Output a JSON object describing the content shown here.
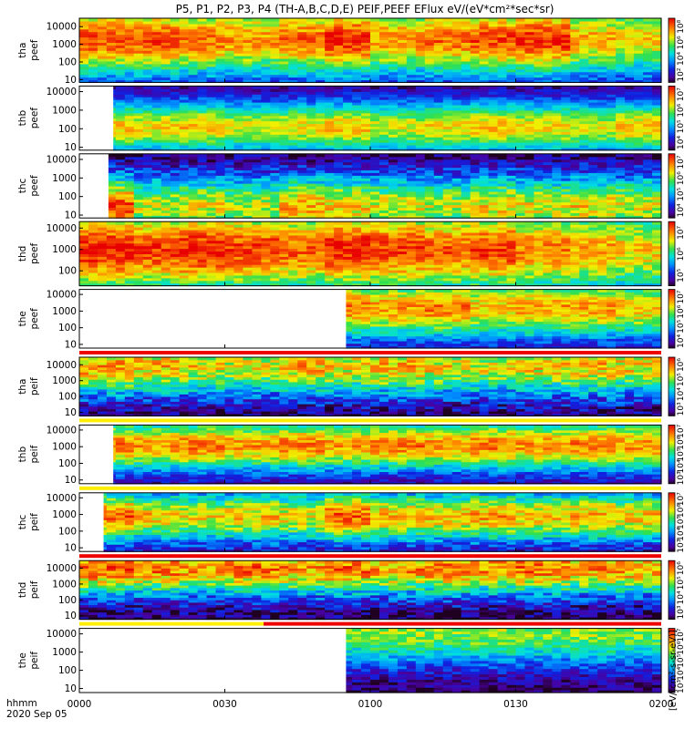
{
  "chart_data": {
    "type": "heatmap",
    "title": "P5, P1, P2, P3, P4 (TH-A,B,C,D,E) PEIF,PEEF EFlux eV/(eV*cm²*sec*sr)",
    "x": {
      "ticks": [
        "0000",
        "0030",
        "0100",
        "0130",
        "0200"
      ],
      "tick_minutes": [
        0,
        30,
        60,
        90,
        120
      ],
      "range_minutes": [
        0,
        120
      ],
      "corner_label_1": "hhmm",
      "corner_label_2": "2020 Sep 05"
    },
    "colorbar_label": "[eV/(cm²-s-sr-eV)]",
    "panels": [
      {
        "probe": "tha",
        "species": "peef",
        "ylabel": [
          "tha",
          "peef"
        ],
        "yticks": [
          "10",
          "100",
          "1000",
          "10000"
        ],
        "ytick_values": [
          10,
          100,
          1000,
          10000
        ],
        "yrange": [
          7,
          30000
        ],
        "data_start_min": 0,
        "peak_log_e": 3.3,
        "peak_level": 0.88,
        "width_dex": 1.5,
        "spread": 0.1,
        "mod": [
          0.9,
          0.9,
          0.85,
          0.8,
          0.85,
          0.95,
          0.8,
          0.85,
          0.9,
          0.95,
          0.75,
          0.7
        ],
        "cbar_ticks": [
          "10²",
          "10⁴",
          "10⁶",
          "10⁸"
        ],
        "status_bar": []
      },
      {
        "probe": "thb",
        "species": "peef",
        "ylabel": [
          "thb",
          "peef"
        ],
        "yticks": [
          "10",
          "100",
          "1000",
          "10000"
        ],
        "ytick_values": [
          10,
          100,
          1000,
          10000
        ],
        "yrange": [
          7,
          20000
        ],
        "data_start_min": 7,
        "peak_log_e": 2.1,
        "peak_level": 0.72,
        "width_dex": 1.0,
        "spread": 0.08,
        "mod": [
          0.9,
          0.85,
          0.9,
          0.8,
          0.85,
          0.9,
          0.8,
          0.85,
          0.9,
          0.85,
          0.8,
          0.9
        ],
        "cbar_ticks": [
          "10⁴",
          "10⁵",
          "10⁶",
          "10⁷"
        ],
        "status_bar": []
      },
      {
        "probe": "thc",
        "species": "peef",
        "ylabel": [
          "thc",
          "peef"
        ],
        "yticks": [
          "10",
          "100",
          "1000",
          "10000"
        ],
        "ytick_values": [
          10,
          100,
          1000,
          10000
        ],
        "yrange": [
          7,
          20000
        ],
        "data_start_min": 6,
        "peak_log_e": 1.5,
        "peak_level": 0.78,
        "width_dex": 1.2,
        "spread": 0.12,
        "mod": [
          1.0,
          0.7,
          0.75,
          0.7,
          0.85,
          0.8,
          0.75,
          0.7,
          0.8,
          0.75,
          0.8,
          0.75
        ],
        "cbar_ticks": [
          "10⁴",
          "10⁵",
          "10⁶",
          "10⁷"
        ],
        "status_bar": []
      },
      {
        "probe": "thd",
        "species": "peef",
        "ylabel": [
          "thd",
          "peef"
        ],
        "yticks": [
          "100",
          "1000",
          "10000"
        ],
        "ytick_values": [
          100,
          1000,
          10000
        ],
        "yrange": [
          20,
          20000
        ],
        "data_start_min": 0,
        "peak_log_e": 3.0,
        "peak_level": 0.9,
        "width_dex": 1.5,
        "spread": 0.1,
        "mod": [
          0.95,
          0.9,
          0.95,
          0.9,
          0.85,
          0.95,
          0.9,
          0.85,
          0.9,
          0.8,
          0.75,
          0.7
        ],
        "cbar_ticks": [
          "10⁵",
          "10⁶",
          "10⁷"
        ],
        "status_bar": []
      },
      {
        "probe": "the",
        "species": "peef",
        "ylabel": [
          "the",
          "peef"
        ],
        "yticks": [
          "10",
          "100",
          "1000",
          "10000"
        ],
        "ytick_values": [
          10,
          100,
          1000,
          10000
        ],
        "yrange": [
          6,
          20000
        ],
        "data_start_min": 55,
        "peak_log_e": 3.2,
        "peak_level": 0.86,
        "width_dex": 1.3,
        "spread": 0.1,
        "mod": [
          0.9,
          0.9,
          0.85,
          0.9,
          0.8,
          0.85,
          0.8,
          0.85,
          0.75,
          0.8,
          0.8,
          0.75
        ],
        "cbar_ticks": [
          "10⁴",
          "10⁵",
          "10⁶",
          "10⁷"
        ],
        "status_bar": [
          {
            "color": "#ee0000",
            "from": 0,
            "to": 120
          }
        ]
      },
      {
        "probe": "tha",
        "species": "peif",
        "ylabel": [
          "tha",
          "peif"
        ],
        "yticks": [
          "10",
          "100",
          "1000",
          "10000"
        ],
        "ytick_values": [
          10,
          100,
          1000,
          10000
        ],
        "yrange": [
          6,
          30000
        ],
        "data_start_min": 0,
        "peak_log_e": 3.9,
        "peak_level": 0.72,
        "width_dex": 1.3,
        "spread": 0.14,
        "mod": [
          0.95,
          0.9,
          0.85,
          0.8,
          0.9,
          0.85,
          0.9,
          0.85,
          0.8,
          0.85,
          0.9,
          0.85
        ],
        "cbar_ticks": [
          "10³",
          "10⁴",
          "10⁵",
          "10⁶"
        ],
        "status_bar": [
          {
            "color": "#ffee00",
            "from": 0,
            "to": 120
          }
        ]
      },
      {
        "probe": "thb",
        "species": "peif",
        "ylabel": [
          "thb",
          "peif"
        ],
        "yticks": [
          "10",
          "100",
          "1000",
          "10000"
        ],
        "ytick_values": [
          10,
          100,
          1000,
          10000
        ],
        "yrange": [
          6,
          20000
        ],
        "data_start_min": 7,
        "peak_log_e": 3.1,
        "peak_level": 0.82,
        "width_dex": 1.1,
        "spread": 0.1,
        "mod": [
          0.9,
          0.85,
          0.9,
          0.85,
          0.9,
          0.85,
          0.9,
          0.85,
          0.9,
          0.85,
          0.9,
          0.85
        ],
        "cbar_ticks": [
          "10³",
          "10⁴",
          "10⁵",
          "10⁶",
          "10⁷"
        ],
        "status_bar": [
          {
            "color": "#ffee00",
            "from": 0,
            "to": 120
          }
        ]
      },
      {
        "probe": "thc",
        "species": "peif",
        "ylabel": [
          "thc",
          "peif"
        ],
        "yticks": [
          "10",
          "100",
          "1000",
          "10000"
        ],
        "ytick_values": [
          10,
          100,
          1000,
          10000
        ],
        "yrange": [
          6,
          20000
        ],
        "data_start_min": 5,
        "peak_log_e": 2.9,
        "peak_level": 0.8,
        "width_dex": 1.1,
        "spread": 0.12,
        "mod": [
          0.95,
          0.8,
          0.75,
          0.8,
          0.75,
          0.95,
          0.85,
          0.8,
          0.85,
          0.8,
          0.85,
          0.8
        ],
        "cbar_ticks": [
          "10³",
          "10⁴",
          "10⁵",
          "10⁶",
          "10⁷"
        ],
        "status_bar": [
          {
            "color": "#ee0000",
            "from": 0,
            "to": 120
          }
        ]
      },
      {
        "probe": "thd",
        "species": "peif",
        "ylabel": [
          "thd",
          "peif"
        ],
        "yticks": [
          "10",
          "100",
          "1000",
          "10000"
        ],
        "ytick_values": [
          10,
          100,
          1000,
          10000
        ],
        "yrange": [
          6,
          30000
        ],
        "data_start_min": 0,
        "peak_log_e": 4.0,
        "peak_level": 0.82,
        "width_dex": 1.2,
        "spread": 0.14,
        "mod": [
          0.95,
          0.9,
          0.85,
          0.9,
          0.85,
          0.9,
          0.85,
          0.9,
          0.85,
          0.9,
          0.85,
          0.85
        ],
        "cbar_ticks": [
          "10³",
          "10⁴",
          "10⁵",
          "10⁶"
        ],
        "status_bar": [
          {
            "color": "#ffee00",
            "from": 0,
            "to": 38
          },
          {
            "color": "#ee0000",
            "from": 38,
            "to": 120
          }
        ]
      },
      {
        "probe": "the",
        "species": "peif",
        "ylabel": [
          "the",
          "peif"
        ],
        "yticks": [
          "10",
          "100",
          "1000",
          "10000"
        ],
        "ytick_values": [
          10,
          100,
          1000,
          10000
        ],
        "yrange": [
          6,
          20000
        ],
        "data_start_min": 55,
        "peak_log_e": 4.1,
        "peak_level": 0.58,
        "width_dex": 1.3,
        "spread": 0.1,
        "mod": [
          0.9,
          0.85,
          0.9,
          0.85,
          0.9,
          0.85,
          0.9,
          0.85,
          0.9,
          0.85,
          0.9,
          0.85
        ],
        "cbar_ticks": [
          "10³",
          "10⁴",
          "10⁵",
          "10⁶",
          "10⁷"
        ],
        "status_bar": []
      }
    ]
  }
}
